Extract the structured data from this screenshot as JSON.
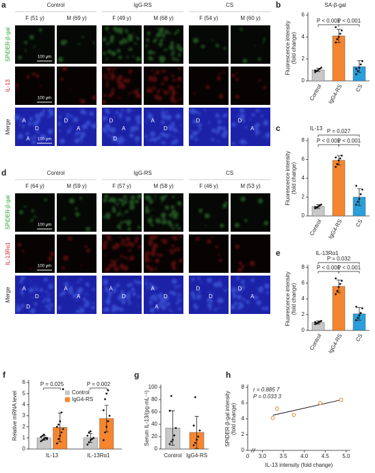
{
  "panel_a": {
    "letter": "a",
    "groups": [
      "Control",
      "IgG-RS",
      "CS"
    ],
    "samples": [
      "F (51 y)",
      "M (69 y)",
      "F (49 y)",
      "M (68 y)",
      "F (54 y)",
      "M (60 y)"
    ],
    "rows": [
      "SPiDER-β-gal",
      "IL-13",
      "Merge"
    ],
    "scale_bar": "100 μm",
    "annotations": [
      [
        "A",
        "D",
        "A"
      ],
      [
        "D",
        "A"
      ],
      [
        "D",
        "A",
        "D"
      ],
      [
        "A",
        "D"
      ],
      [
        "D"
      ],
      [
        "D",
        "A"
      ]
    ]
  },
  "panel_d": {
    "letter": "d",
    "groups": [
      "Control",
      "IgG-RS",
      "CS"
    ],
    "samples": [
      "F (64 y)",
      "M (59 y)",
      "F (57 y)",
      "M (58 y)",
      "F (46 y)",
      "M (53 y)"
    ],
    "rows": [
      "SPiDER-β-gal",
      "IL-13Rα1",
      "Merge"
    ],
    "scale_bar": "100 μm",
    "annotations": [
      [
        "A",
        "D",
        "D"
      ],
      [
        "A",
        "A"
      ],
      [
        "A",
        "D"
      ],
      [
        "A",
        "D",
        "A"
      ],
      [
        "D",
        "D"
      ],
      [
        "D",
        "A"
      ]
    ]
  },
  "chart_data": [
    {
      "type": "bar",
      "panel": "b",
      "title": "SA-β-gal",
      "ylabel": [
        "Fluorescence intensity",
        "(fold change)"
      ],
      "categories": [
        "Control",
        "IgG4-RS",
        "CS"
      ],
      "values": [
        1.0,
        4.1,
        1.3
      ],
      "errors": [
        0.15,
        0.6,
        0.55
      ],
      "points": [
        [
          0.8,
          0.9,
          1.0,
          1.1,
          1.2,
          0.95
        ],
        [
          3.5,
          3.8,
          4.0,
          4.3,
          4.6,
          4.9
        ],
        [
          0.6,
          0.9,
          1.2,
          1.5,
          1.8,
          1.1
        ]
      ],
      "colors": [
        "#c8c8c8",
        "#f5852f",
        "#2a9fdc"
      ],
      "ylim": [
        0,
        6
      ],
      "yticks": [
        0,
        2,
        4,
        6
      ],
      "annotations": [
        "P < 0.001",
        "P < 0.001"
      ]
    },
    {
      "type": "bar",
      "panel": "c",
      "title": "IL-13",
      "ylabel": [
        "Fluorescence intensity",
        "(fold change)"
      ],
      "categories": [
        "Control",
        "IgG4-RS",
        "CS"
      ],
      "values": [
        1.0,
        5.9,
        2.0
      ],
      "errors": [
        0.2,
        0.5,
        0.9
      ],
      "points": [
        [
          0.8,
          0.9,
          1.0,
          1.1,
          1.2,
          0.95
        ],
        [
          5.2,
          5.5,
          5.9,
          6.1,
          6.4,
          6.2
        ],
        [
          1.2,
          1.5,
          1.8,
          2.3,
          2.8,
          3.2
        ]
      ],
      "colors": [
        "#c8c8c8",
        "#f5852f",
        "#2a9fdc"
      ],
      "ylim": [
        0,
        8
      ],
      "yticks": [
        0,
        2,
        4,
        6,
        8
      ],
      "annotations": [
        "P = 0.027",
        "P < 0.001",
        "P < 0.001"
      ]
    },
    {
      "type": "bar",
      "panel": "e",
      "title": "IL-13Rα1",
      "ylabel": [
        "Fluorescence intensity",
        "(fold change)"
      ],
      "categories": [
        "Control",
        "IgG4-RS",
        "CS"
      ],
      "values": [
        1.0,
        5.6,
        2.1
      ],
      "errors": [
        0.2,
        0.8,
        0.8
      ],
      "points": [
        [
          0.8,
          0.9,
          1.0,
          1.1,
          1.2,
          1.05
        ],
        [
          4.6,
          5.0,
          5.5,
          5.9,
          6.3,
          6.6
        ],
        [
          1.3,
          1.6,
          1.9,
          2.2,
          2.8,
          3.0
        ]
      ],
      "colors": [
        "#c8c8c8",
        "#f5852f",
        "#2a9fdc"
      ],
      "ylim": [
        0,
        8
      ],
      "yticks": [
        0,
        2,
        4,
        6,
        8
      ],
      "annotations": [
        "P = 0.032",
        "P < 0.001",
        "P < 0.001"
      ]
    },
    {
      "type": "bar",
      "panel": "f",
      "ylabel": [
        "Relative mRNA level"
      ],
      "categories": [
        "IL-13",
        "IL-13Rα1"
      ],
      "series": [
        {
          "name": "Control",
          "color": "#c8c8c8",
          "values": [
            1.0,
            1.0
          ],
          "errors": [
            0.2,
            0.4
          ],
          "points": [
            [
              0.7,
              0.8,
              0.9,
              1.0,
              1.0,
              1.1,
              1.2,
              1.3,
              1.0,
              0.9
            ],
            [
              0.4,
              0.6,
              0.8,
              0.9,
              1.0,
              1.2,
              1.5,
              1.6
            ]
          ]
        },
        {
          "name": "IgG4-RS",
          "color": "#f5852f",
          "values": [
            1.95,
            2.75
          ],
          "errors": [
            1.3,
            1.2
          ],
          "points": [
            [
              0.5,
              0.9,
              1.2,
              1.5,
              1.8,
              2.0,
              2.2,
              2.5,
              3.3,
              5.4
            ],
            [
              0.8,
              1.5,
              2.0,
              2.5,
              3.0,
              3.5,
              4.5,
              5.0,
              5.3
            ]
          ]
        }
      ],
      "ylim": [
        0,
        6
      ],
      "yticks": [
        0,
        1,
        2,
        3,
        4,
        5,
        6
      ],
      "legend": "upper right",
      "annotations": [
        "P = 0.025",
        "P = 0.002"
      ]
    },
    {
      "type": "bar",
      "panel": "g",
      "ylabel": [
        "Serum IL-13/(pg·mL⁻¹)"
      ],
      "categories": [
        "Control",
        "IgG4-RS"
      ],
      "values": [
        34,
        27
      ],
      "errors": [
        28,
        26
      ],
      "points": [
        [
          8,
          12,
          15,
          22,
          34,
          62,
          86
        ],
        [
          6,
          10,
          15,
          20,
          30,
          38,
          84
        ]
      ],
      "colors": [
        "#c8c8c8",
        "#f5852f"
      ],
      "ylim": [
        0,
        100
      ],
      "yticks": [
        0,
        20,
        40,
        60,
        80,
        100
      ]
    },
    {
      "type": "scatter",
      "panel": "h",
      "ylabel": [
        "SPiDER-β-gal intensity",
        "(fold change)"
      ],
      "xlabel": "IL-13 intensity (fold change)",
      "x": [
        3.25,
        3.35,
        3.75,
        4.38,
        4.88
      ],
      "y": [
        4.1,
        5.3,
        4.5,
        6.0,
        6.4
      ],
      "color": "#f08030",
      "xlim": [
        2.65,
        5.1
      ],
      "x_break_label": "0",
      "xticks": [
        {
          "value": 3,
          "label": "3.0"
        },
        3.5,
        {
          "value": 4,
          "label": "4.0"
        },
        4.5,
        {
          "value": 5,
          "label": "5.0"
        }
      ],
      "ylim": [
        0,
        8
      ],
      "yticks": [
        0,
        2,
        4,
        6,
        8
      ],
      "annotations": [
        "r = 0.885 7",
        "P = 0.033 3"
      ]
    }
  ]
}
